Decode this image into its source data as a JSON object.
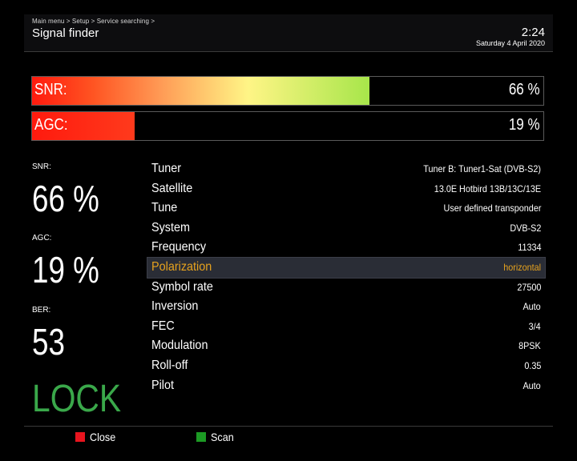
{
  "header": {
    "breadcrumb": "Main menu > Setup > Service searching >",
    "title": "Signal finder",
    "time": "2:24",
    "date": "Saturday  4 April 2020"
  },
  "bars": {
    "snr": {
      "label": "SNR:",
      "value_text": "66 %",
      "fraction": 0.66,
      "color_start": "#ff1a0e",
      "color_end": "#a7e64a"
    },
    "agc": {
      "label": "AGC:",
      "value_text": "19 %",
      "fraction": 0.2,
      "color_start": "#ff1a0e",
      "color_end": "#ff3a1c"
    }
  },
  "readouts": {
    "snr_label": "SNR:",
    "snr_value": "66 %",
    "agc_label": "AGC:",
    "agc_value": "19 %",
    "ber_label": "BER:",
    "ber_value": "53",
    "lock": "LOCK",
    "lock_color": "#3aa84a"
  },
  "info": {
    "selected_index": 5,
    "selected_color": "#e6a21e",
    "rows": [
      {
        "label": "Tuner",
        "value": "Tuner B: Tuner1-Sat (DVB-S2)"
      },
      {
        "label": "Satellite",
        "value": "13.0E Hotbird 13B/13C/13E"
      },
      {
        "label": "Tune",
        "value": "User defined transponder"
      },
      {
        "label": "System",
        "value": "DVB-S2"
      },
      {
        "label": "Frequency",
        "value": "11334"
      },
      {
        "label": "Polarization",
        "value": "horizontal"
      },
      {
        "label": "Symbol rate",
        "value": "27500"
      },
      {
        "label": "Inversion",
        "value": "Auto"
      },
      {
        "label": "FEC",
        "value": "3/4"
      },
      {
        "label": "Modulation",
        "value": "8PSK"
      },
      {
        "label": "Roll-off",
        "value": "0.35"
      },
      {
        "label": "Pilot",
        "value": "Auto"
      }
    ]
  },
  "footer": {
    "close_label": "Close",
    "close_color": "#e8141e",
    "scan_label": "Scan",
    "scan_color": "#1c9a24"
  }
}
